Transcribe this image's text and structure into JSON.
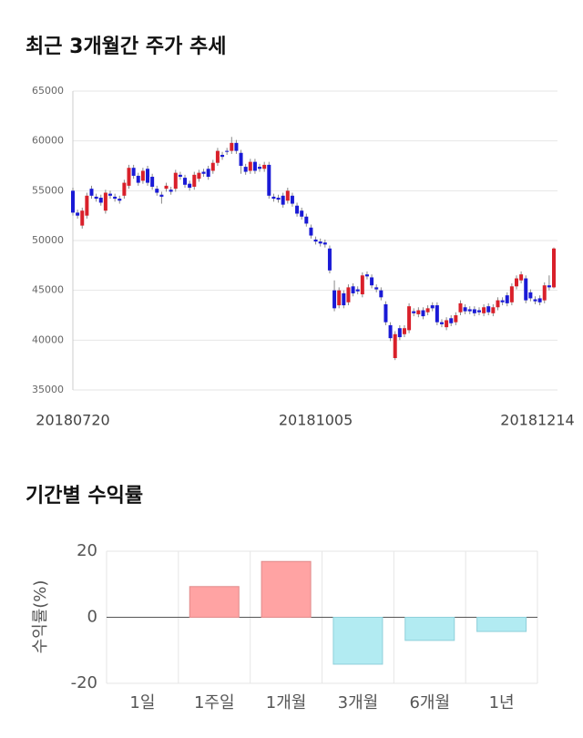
{
  "chart_data": [
    {
      "type": "candlestick",
      "title": "최근 3개월간 주가 추세",
      "categories": [
        "20180720",
        null,
        null,
        null,
        null,
        null,
        null,
        null,
        null,
        null,
        null,
        null,
        null,
        null,
        null,
        null,
        null,
        null,
        null,
        null,
        null,
        null,
        null,
        null,
        null,
        null,
        null,
        null,
        null,
        null,
        null,
        null,
        null,
        null,
        null,
        null,
        null,
        null,
        null,
        null,
        null,
        null,
        null,
        null,
        null,
        null,
        null,
        null,
        null,
        null,
        null,
        null,
        "20181005",
        null,
        null,
        null,
        null,
        null,
        null,
        null,
        null,
        null,
        null,
        null,
        null,
        null,
        null,
        null,
        null,
        null,
        null,
        null,
        null,
        null,
        null,
        null,
        null,
        null,
        null,
        null,
        null,
        null,
        null,
        null,
        null,
        null,
        null,
        null,
        null,
        null,
        null,
        null,
        null,
        null,
        null,
        null,
        null,
        null,
        null,
        null,
        null,
        null,
        null,
        "20181214"
      ],
      "open": [
        55000,
        52800,
        51500,
        52500,
        55200,
        54400,
        54300,
        53000,
        54700,
        54400,
        54200,
        54500,
        55500,
        57300,
        56500,
        56000,
        57200,
        56400,
        55200,
        54600,
        55200,
        55100,
        55200,
        56600,
        56300,
        55700,
        55400,
        56200,
        56900,
        57200,
        57000,
        57800,
        58600,
        59000,
        59000,
        59800,
        58800,
        57400,
        57000,
        57900,
        57400,
        57200,
        57600,
        54400,
        54300,
        54500,
        54000,
        54500,
        53500,
        53000,
        52400,
        51300,
        50100,
        49900,
        49800,
        49200,
        45000,
        43500,
        44700,
        43800,
        45400,
        45100,
        44600,
        46600,
        46300,
        45300,
        45000,
        43600,
        41500,
        38200,
        41200,
        40600,
        41000,
        42900,
        42600,
        43000,
        42800,
        43500,
        43500,
        41800,
        41300,
        42200,
        41800,
        42800,
        43300,
        43100,
        43100,
        43000,
        42700,
        43400,
        42700,
        43300,
        44000,
        44500,
        43800,
        45400,
        46000,
        46200,
        44800,
        44100,
        44200,
        44000,
        45500,
        45300
      ],
      "close": [
        52800,
        52500,
        53000,
        54500,
        54500,
        54200,
        53800,
        54800,
        54500,
        54200,
        54000,
        55800,
        57300,
        56500,
        55800,
        57000,
        55800,
        55400,
        54800,
        54400,
        55500,
        54900,
        56800,
        56400,
        55600,
        55300,
        56600,
        56800,
        56700,
        56400,
        57800,
        59000,
        58400,
        58900,
        59800,
        59000,
        57500,
        56900,
        57900,
        57000,
        57200,
        57600,
        54500,
        54200,
        54100,
        53600,
        55000,
        53700,
        52700,
        52400,
        51700,
        50500,
        49900,
        49700,
        49600,
        47000,
        43200,
        45000,
        43500,
        45300,
        44700,
        44900,
        46500,
        46400,
        45500,
        45100,
        44300,
        41800,
        40200,
        40600,
        40300,
        41200,
        43400,
        42700,
        43000,
        42400,
        43200,
        43200,
        41800,
        41600,
        42000,
        41700,
        42500,
        43700,
        42900,
        42900,
        42700,
        42800,
        43300,
        42800,
        43300,
        44000,
        43800,
        43700,
        45400,
        46200,
        46600,
        44000,
        44200,
        43900,
        43800,
        45500,
        45300,
        49200
      ],
      "high": [
        55300,
        53100,
        53300,
        54800,
        55500,
        54700,
        54600,
        55100,
        55000,
        54700,
        54500,
        56100,
        57600,
        57600,
        56800,
        57300,
        57500,
        56700,
        55500,
        54900,
        55800,
        55400,
        57100,
        56900,
        56600,
        56000,
        56900,
        57100,
        57200,
        57500,
        58100,
        59300,
        58900,
        59300,
        60400,
        60100,
        59100,
        57700,
        58200,
        58200,
        57700,
        57900,
        57900,
        54700,
        54600,
        54800,
        55300,
        54800,
        53800,
        53300,
        52700,
        51600,
        50400,
        50200,
        50100,
        49500,
        46000,
        45300,
        45000,
        45600,
        45700,
        45400,
        46800,
        46900,
        46600,
        45600,
        45300,
        43900,
        41800,
        40900,
        41500,
        41500,
        43700,
        43200,
        43300,
        43300,
        43500,
        43800,
        43800,
        42100,
        42300,
        42500,
        42800,
        44000,
        43600,
        43400,
        43400,
        43300,
        43600,
        43700,
        43600,
        44300,
        44300,
        44800,
        45700,
        46500,
        46900,
        46500,
        45100,
        44400,
        44500,
        45800,
        46500,
        49300
      ],
      "low": [
        52500,
        52200,
        51200,
        52200,
        54200,
        53900,
        53500,
        52700,
        54200,
        53900,
        53700,
        54200,
        55200,
        56200,
        55500,
        55700,
        55500,
        55100,
        54500,
        53700,
        54900,
        54600,
        54900,
        56100,
        55300,
        55000,
        55100,
        55900,
        56400,
        56100,
        56700,
        57500,
        58100,
        58600,
        58700,
        58700,
        56700,
        56600,
        56700,
        56700,
        56900,
        56900,
        54200,
        53900,
        53800,
        53300,
        53700,
        53400,
        52400,
        52100,
        51400,
        50200,
        49600,
        49400,
        49300,
        46700,
        42900,
        43200,
        43200,
        43500,
        44400,
        44600,
        44300,
        46100,
        45200,
        44800,
        44000,
        41500,
        39900,
        38000,
        40000,
        40300,
        40700,
        42400,
        42300,
        42100,
        42500,
        42900,
        41500,
        41300,
        41000,
        41400,
        41500,
        42500,
        42600,
        42600,
        42400,
        42500,
        42400,
        42500,
        42400,
        43000,
        43500,
        43400,
        43500,
        45100,
        45700,
        43700,
        43900,
        43600,
        43500,
        43700,
        45000,
        45200
      ],
      "up_color": "#d9202a",
      "down_color": "#1a1ad6",
      "ylim": [
        35000,
        65000
      ],
      "yticks": [
        35000,
        40000,
        45000,
        50000,
        55000,
        60000,
        65000
      ],
      "grid": true
    },
    {
      "type": "bar",
      "title": "기간별 수익률",
      "ylabel": "수익률(%)",
      "categories": [
        "1일",
        "1주일",
        "1개월",
        "3개월",
        "6개월",
        "1년"
      ],
      "values": [
        0,
        9.3,
        16.9,
        -14.2,
        -7.0,
        -4.3
      ],
      "pos_color": "#ffa3a3",
      "neg_color": "#b2ebf2",
      "ylim": [
        -20,
        20
      ],
      "yticks": [
        -20,
        0,
        20
      ],
      "grid": true
    }
  ]
}
